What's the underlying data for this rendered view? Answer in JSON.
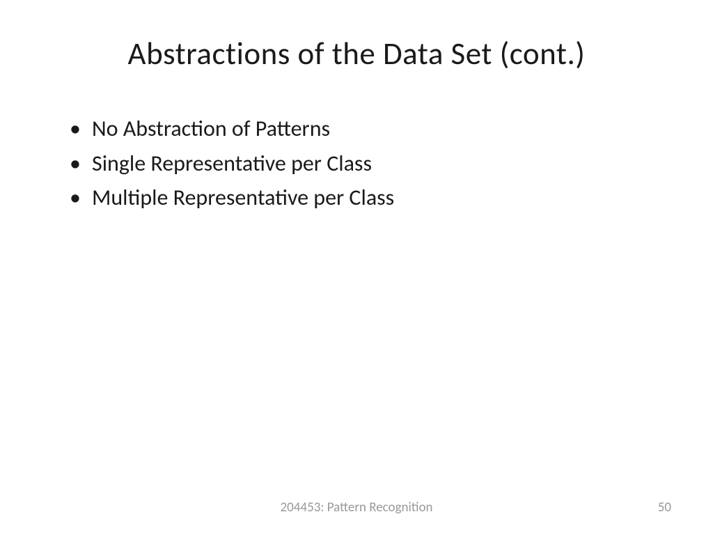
{
  "slide": {
    "title": "Abstractions of the Data Set (cont.)",
    "bullets": [
      "No Abstraction of Patterns",
      "Single Representative per Class",
      "Multiple Representative per Class"
    ],
    "footer": {
      "course": "204453: Pattern Recognition",
      "pageNumber": "50"
    }
  },
  "styling": {
    "background_color": "#ffffff",
    "title_color": "#1a1a1a",
    "title_fontsize": 45,
    "body_color": "#1a1a1a",
    "body_fontsize": 32,
    "footer_color": "#999999",
    "footer_fontsize": 19,
    "font_family": "Calibri"
  }
}
